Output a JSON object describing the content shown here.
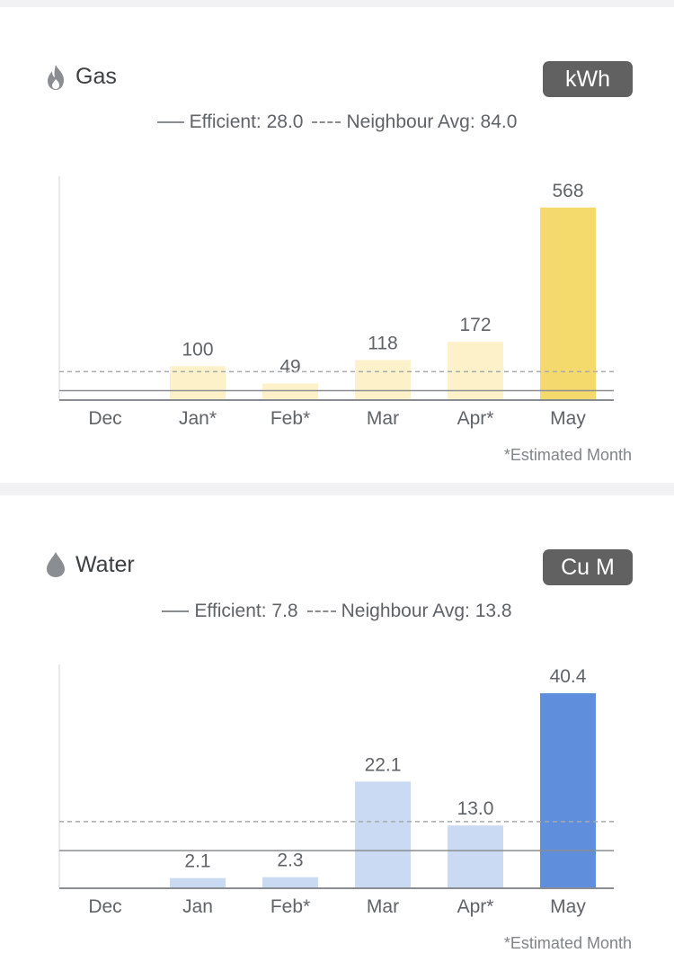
{
  "gas": {
    "title": "Gas",
    "icon": "flame-icon",
    "unit": "kWh",
    "legend": {
      "efficient_label": "Efficient:",
      "efficient_value": "28.0",
      "neighbour_label": "Neighbour Avg:",
      "neighbour_value": "84.0"
    },
    "footnote": "*Estimated Month",
    "colors": {
      "light": "#fdf1c9",
      "highlight": "#f4d96c"
    }
  },
  "water": {
    "title": "Water",
    "icon": "water-drop-icon",
    "unit": "Cu M",
    "legend": {
      "efficient_label": "Efficient:",
      "efficient_value": "7.8",
      "neighbour_label": "Neighbour Avg:",
      "neighbour_value": "13.8"
    },
    "footnote": "*Estimated Month",
    "colors": {
      "light": "#c9daf2",
      "highlight": "#5f8fdc"
    }
  },
  "chart_data": [
    {
      "type": "bar",
      "title": "Gas",
      "categories": [
        "Dec",
        "Jan*",
        "Feb*",
        "Mar",
        "Apr*",
        "May"
      ],
      "values": [
        0,
        100,
        49,
        118,
        172,
        568
      ],
      "value_labels": [
        "",
        "100",
        "49",
        "118",
        "172",
        "568"
      ],
      "reference_lines": [
        {
          "label": "Efficient",
          "value": 28.0,
          "style": "solid"
        },
        {
          "label": "Neighbour Avg",
          "value": 84.0,
          "style": "dashed"
        }
      ],
      "ylim": [
        0,
        655
      ],
      "highlight_index": 5,
      "grid": false
    },
    {
      "type": "bar",
      "title": "Water",
      "categories": [
        "Dec",
        "Jan",
        "Feb*",
        "Mar",
        "Apr*",
        "May"
      ],
      "values": [
        0,
        2.1,
        2.3,
        22.1,
        13.0,
        40.4
      ],
      "value_labels": [
        "",
        "2.1",
        "2.3",
        "22.1",
        "13.0",
        "40.4"
      ],
      "reference_lines": [
        {
          "label": "Efficient",
          "value": 7.8,
          "style": "solid"
        },
        {
          "label": "Neighbour Avg",
          "value": 13.8,
          "style": "dashed"
        }
      ],
      "ylim": [
        0,
        46
      ],
      "highlight_index": 5,
      "grid": false
    }
  ]
}
